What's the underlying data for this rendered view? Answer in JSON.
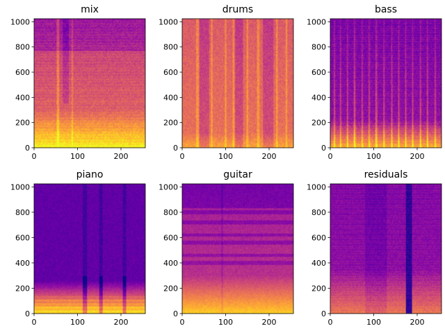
{
  "figure": {
    "colormap": "plasma"
  },
  "chart_data": [
    {
      "type": "heatmap",
      "title": "mix",
      "xlim": [
        0,
        256
      ],
      "ylim": [
        0,
        1024
      ],
      "xticks": [
        0,
        100,
        200
      ],
      "yticks": [
        0,
        200,
        400,
        600,
        800,
        1000
      ],
      "profile": "mix",
      "description_values": {
        "overall_intensity": 0.62,
        "bass_band_boost": 0.35,
        "high_band_cutoff": 770
      }
    },
    {
      "type": "heatmap",
      "title": "drums",
      "xlim": [
        0,
        256
      ],
      "ylim": [
        0,
        1024
      ],
      "xticks": [
        0,
        100,
        200
      ],
      "yticks": [
        0,
        200,
        400,
        600,
        800,
        1000
      ],
      "profile": "drums",
      "description_values": {
        "overall_intensity": 0.65,
        "hit_columns": [
          35,
          68,
          100,
          118,
          150,
          175,
          218,
          240
        ]
      }
    },
    {
      "type": "heatmap",
      "title": "bass",
      "xlim": [
        0,
        256
      ],
      "ylim": [
        0,
        1024
      ],
      "xticks": [
        0,
        100,
        200
      ],
      "yticks": [
        0,
        200,
        400,
        600,
        800,
        1000
      ],
      "profile": "bass",
      "description_values": {
        "overall_intensity": 0.3,
        "onset_columns": [
          8,
          22,
          38,
          55,
          72,
          88,
          105,
          122,
          140,
          156,
          172,
          188,
          206,
          222,
          240
        ]
      }
    },
    {
      "type": "heatmap",
      "title": "piano",
      "xlim": [
        0,
        256
      ],
      "ylim": [
        0,
        1024
      ],
      "xticks": [
        0,
        100,
        200
      ],
      "yticks": [
        0,
        200,
        400,
        600,
        800,
        1000
      ],
      "profile": "piano",
      "description_values": {
        "overall_intensity": 0.18,
        "gaps": [
          [
            112,
            122
          ],
          [
            150,
            158
          ],
          [
            205,
            212
          ]
        ]
      }
    },
    {
      "type": "heatmap",
      "title": "guitar",
      "xlim": [
        0,
        256
      ],
      "ylim": [
        0,
        1024
      ],
      "xticks": [
        0,
        100,
        200
      ],
      "yticks": [
        0,
        200,
        400,
        600,
        800,
        1000
      ],
      "profile": "guitar",
      "description_values": {
        "overall_intensity": 0.45
      }
    },
    {
      "type": "heatmap",
      "title": "residuals",
      "xlim": [
        0,
        256
      ],
      "ylim": [
        0,
        1024
      ],
      "xticks": [
        0,
        100,
        200
      ],
      "yticks": [
        0,
        200,
        400,
        600,
        800,
        1000
      ],
      "profile": "residuals",
      "description_values": {
        "overall_intensity": 0.3,
        "dark_band": [
          175,
          188
        ]
      }
    }
  ]
}
